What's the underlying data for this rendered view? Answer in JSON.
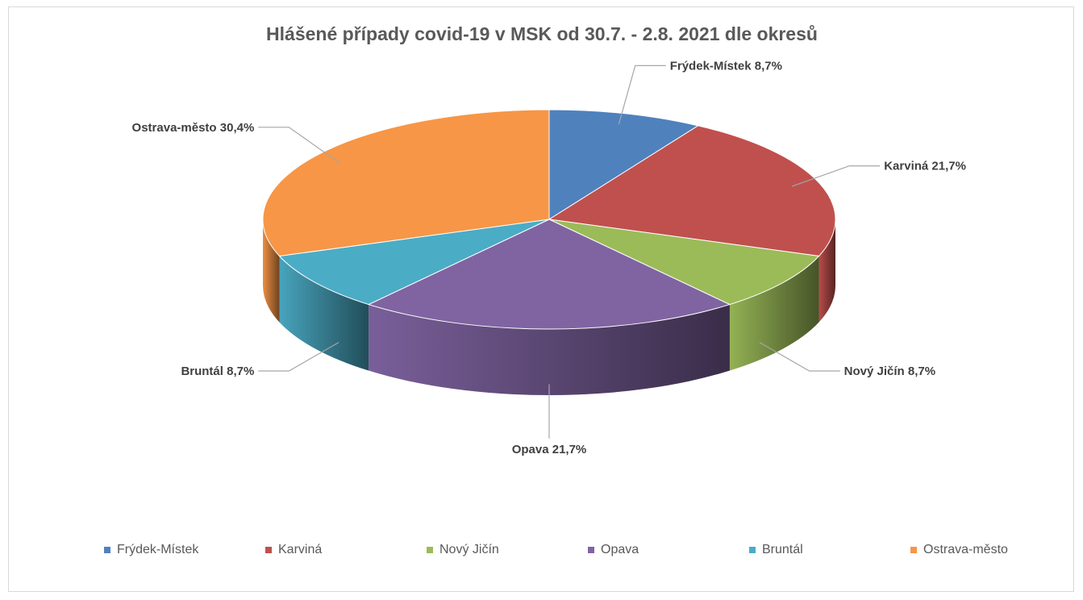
{
  "chart_data": {
    "type": "pie",
    "style": "3d-exploded-none",
    "title": "Hlášené případy covid-19 v MSK od 30.7. - 2.8. 2021 dle okresů",
    "start_angle_deg": 0,
    "direction": "clockwise",
    "legend_position": "bottom",
    "slices": [
      {
        "label": "Frýdek-Místek",
        "value": 8.7,
        "value_label": "8,7%",
        "color": "#4F81BD"
      },
      {
        "label": "Karviná",
        "value": 21.7,
        "value_label": "21,7%",
        "color": "#C0504D"
      },
      {
        "label": "Nový Jičín",
        "value": 8.7,
        "value_label": "8,7%",
        "color": "#9BBB59"
      },
      {
        "label": "Opava",
        "value": 21.7,
        "value_label": "21,7%",
        "color": "#8064A2"
      },
      {
        "label": "Bruntál",
        "value": 8.7,
        "value_label": "8,7%",
        "color": "#4BACC6"
      },
      {
        "label": "Ostrava-město",
        "value": 30.4,
        "value_label": "30,4%",
        "color": "#F79646"
      }
    ]
  }
}
